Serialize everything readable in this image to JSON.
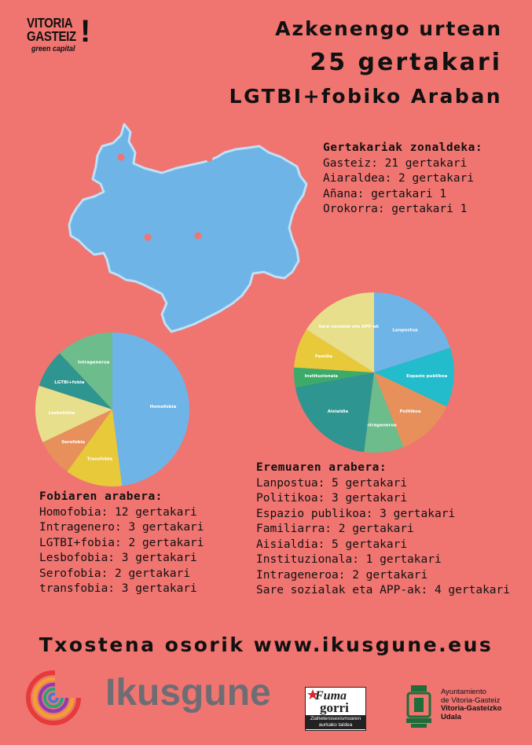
{
  "logo": {
    "line1": "VITORIA",
    "line2": "GASTEIZ",
    "line3": "green capital",
    "mark": "!"
  },
  "headline": {
    "line1": "Azkenengo urtean",
    "line2": "25 gertakari",
    "line3": "LGTBI+fobiko Araban"
  },
  "map": {
    "fill": "#6fb4e6",
    "outline": "#bfe0f6",
    "icon": "araba-map-icon"
  },
  "zones": {
    "title": "Gertakariak zonaldeka:",
    "items": [
      "Gasteiz: 21 gertakari",
      "Aiaraldea: 2 gertakari",
      "Añana: gertakari 1",
      "Orokorra: gertakari 1"
    ]
  },
  "chart_data": [
    {
      "type": "pie",
      "title": "Fobiaren arabera",
      "categories": [
        "Homofobia",
        "Transfobia",
        "Serofobia",
        "Lesbofobia",
        "LGTBI+fobia",
        "Intrageneroa"
      ],
      "values": [
        12,
        3,
        2,
        3,
        2,
        3
      ],
      "colors": [
        "#6fb4e6",
        "#e8c93a",
        "#e8905c",
        "#e7df8c",
        "#2e9590",
        "#6cbc8c"
      ]
    },
    {
      "type": "pie",
      "title": "Eremuaren arabera",
      "categories": [
        "Lanpostua",
        "Espazio publikoa",
        "Politikoa",
        "Intrageneroa",
        "Aisialdia",
        "Instituzionala",
        "Familia",
        "Sare sozialak eta APP-ak"
      ],
      "values": [
        5,
        3,
        3,
        2,
        5,
        1,
        2,
        4
      ],
      "colors": [
        "#6fb4e6",
        "#22bccc",
        "#e8905c",
        "#6cbc8c",
        "#2e9590",
        "#3bab6a",
        "#e8c93a",
        "#e7df8c"
      ]
    }
  ],
  "fobia": {
    "title": "Fobiaren arabera:",
    "items": [
      "Homofobia: 12 gertakari",
      "Intragenero: 3 gertakari",
      "LGTBI+fobia: 2 gertakari",
      "Lesbofobia: 3 gertakari",
      "Serofobia: 2 gertakari",
      "transfobia: 3 gertakari"
    ]
  },
  "eremu": {
    "title": "Eremuaren arabera:",
    "items": [
      "Lanpostua: 5 gertakari",
      "Politikoa: 3 gertakari",
      "Espazio publikoa: 3 gertakari",
      "Familiarra: 2 gertakari",
      "Aisialdia: 5 gertakari",
      "Instituzionala: 1 gertakari",
      "Intrageneroa: 2 gertakari",
      "Sare sozialak eta APP-ak: 4 gertakari"
    ]
  },
  "report": {
    "text": "Txostena osorik www.ikusgune.eus"
  },
  "ikusgune": {
    "name": "Ikusgune"
  },
  "fuma": {
    "word1": "Fuma",
    "word2": "gorri",
    "sub1": "Ziaheterosexismoaren",
    "sub2": "aurkako taldea"
  },
  "ayuntamiento": {
    "line1": "Ayuntamiento",
    "line2": "de Vitoria-Gasteiz",
    "line3": "Vitoria-Gasteizko",
    "line4": "Udala"
  },
  "colors": {
    "background": "#f07470",
    "text": "#111111",
    "ikusgune_grey": "#6d6d73"
  }
}
